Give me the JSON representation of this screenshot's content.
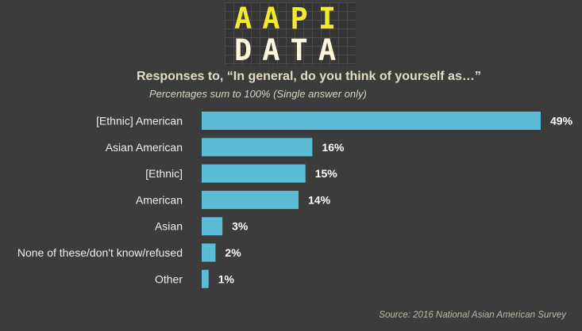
{
  "logo": {
    "line1": "AAPI",
    "line2": "DATA"
  },
  "chart_data": {
    "type": "bar",
    "orientation": "horizontal",
    "title": "Responses to, “In general, do you think of yourself as…”",
    "subtitle": "Percentages sum to 100% (Single answer only)",
    "categories": [
      "[Ethnic] American",
      "Asian American",
      "[Ethnic]",
      "American",
      "Asian",
      "None of these/don't know/refused",
      "Other"
    ],
    "values": [
      49,
      16,
      15,
      14,
      3,
      2,
      1
    ],
    "value_labels": [
      "49%",
      "16%",
      "15%",
      "14%",
      "3%",
      "2%",
      "1%"
    ],
    "xlim": [
      0,
      49
    ],
    "grid": false,
    "bar_color": "#5bbcd6",
    "source": "Source: 2016 National Asian American Survey"
  }
}
